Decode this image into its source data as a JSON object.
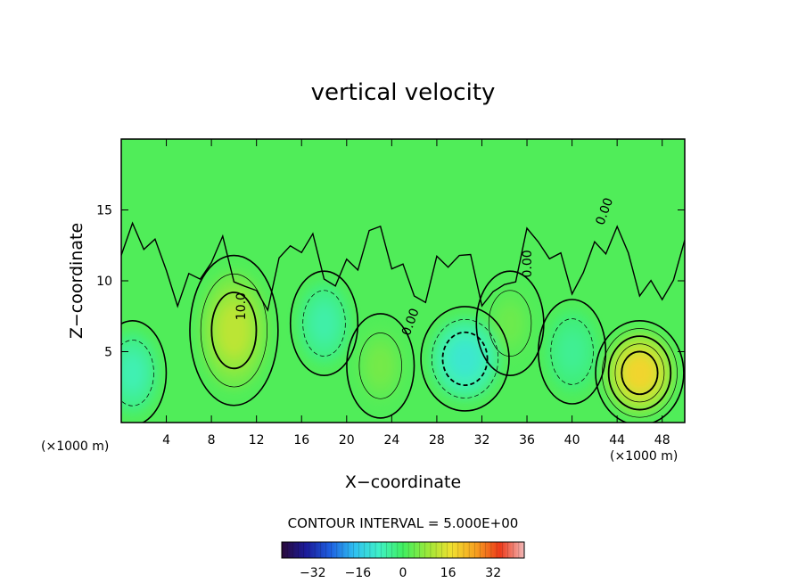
{
  "chart_data": {
    "type": "heatmap",
    "title": "vertical velocity",
    "xlabel": "X−coordinate",
    "ylabel": "Z−coordinate",
    "x_unit_left": "(×1000 m)",
    "x_unit_right": "(×1000 m)",
    "xlim": [
      0,
      50
    ],
    "ylim": [
      0,
      20
    ],
    "x_ticks": [
      "4",
      "8",
      "12",
      "16",
      "20",
      "24",
      "28",
      "32",
      "36",
      "40",
      "44",
      "48"
    ],
    "x_tick_values": [
      4,
      8,
      12,
      16,
      20,
      24,
      28,
      32,
      36,
      40,
      44,
      48
    ],
    "y_ticks": [
      "5",
      "10",
      "15"
    ],
    "y_tick_values": [
      5,
      10,
      15
    ],
    "contour_interval_label": "CONTOUR INTERVAL = 5.000E+00",
    "contour_interval": 5.0,
    "contour_labels": [
      "10.0",
      "0.00",
      "0.00",
      "0.00"
    ],
    "colorbar": {
      "min": -43,
      "max": 43,
      "tick_labels": [
        "−32",
        "−16",
        "0",
        "16",
        "32"
      ],
      "tick_values": [
        -32,
        -16,
        0,
        16,
        32
      ],
      "colormap": [
        "#2a0a3a",
        "#1b1b9a",
        "#1e5fe0",
        "#2fc0f0",
        "#3ff0c8",
        "#40ee60",
        "#9ae83a",
        "#f0e030",
        "#f6a020",
        "#ec3a1a",
        "#f2b8b8"
      ]
    },
    "features": [
      {
        "kind": "updraft",
        "x": 10,
        "z": 6.5,
        "peak": 14
      },
      {
        "kind": "updraft",
        "x": 46,
        "z": 3.5,
        "peak": 22
      },
      {
        "kind": "updraft",
        "x": 23,
        "z": 4,
        "peak": 6
      },
      {
        "kind": "updraft",
        "x": 34.5,
        "z": 7,
        "peak": 5
      },
      {
        "kind": "downdraft",
        "x": 30.5,
        "z": 4.5,
        "peak": -12
      },
      {
        "kind": "downdraft",
        "x": 1,
        "z": 3.5,
        "peak": -8
      },
      {
        "kind": "downdraft",
        "x": 18,
        "z": 7,
        "peak": -7
      },
      {
        "kind": "downdraft",
        "x": 40,
        "z": 5,
        "peak": -5
      }
    ]
  }
}
